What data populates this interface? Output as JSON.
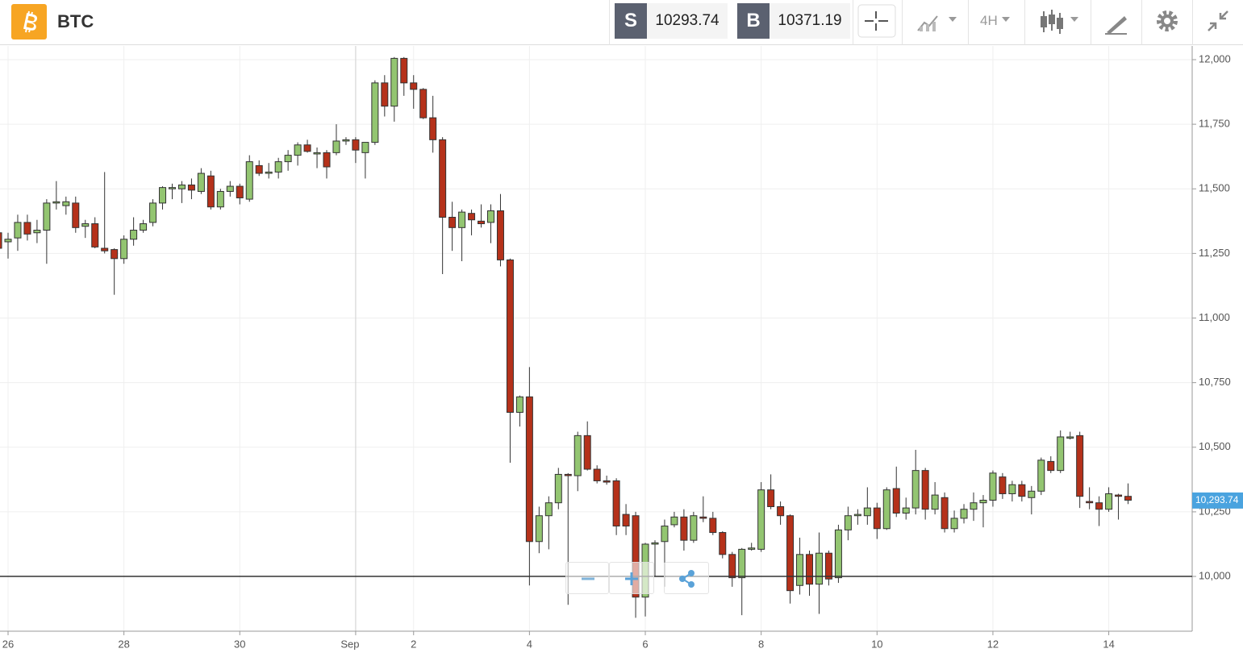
{
  "header": {
    "symbol": "BTC",
    "sell": {
      "label": "S",
      "price": "10293.74"
    },
    "buy": {
      "label": "B",
      "price": "10371.19"
    },
    "interval": "4H"
  },
  "chart_data": {
    "type": "candlestick",
    "up_color": "#93c571",
    "down_color": "#b5311a",
    "ylim": [
      9788,
      12053
    ],
    "yticks": [
      {
        "value": 10000,
        "label": "10,000"
      },
      {
        "value": 10250,
        "label": "10,250"
      },
      {
        "value": 10500,
        "label": "10,500"
      },
      {
        "value": 10750,
        "label": "10,750"
      },
      {
        "value": 11000,
        "label": "11,000"
      },
      {
        "value": 11250,
        "label": "11,250"
      },
      {
        "value": 11500,
        "label": "11,500"
      },
      {
        "value": 11750,
        "label": "11,750"
      },
      {
        "value": 12000,
        "label": "12,000"
      }
    ],
    "grid": true,
    "reference_line": 10000,
    "last_price": {
      "value": 10293.74,
      "label": "10,293.74"
    },
    "last_price_color": "#4aa3df",
    "categories": [
      null,
      "26",
      null,
      null,
      null,
      null,
      null,
      null,
      null,
      null,
      null,
      null,
      null,
      "28",
      null,
      null,
      null,
      null,
      null,
      null,
      null,
      null,
      null,
      null,
      null,
      "30",
      null,
      null,
      null,
      null,
      null,
      null,
      null,
      null,
      null,
      null,
      null,
      "Sep",
      null,
      null,
      null,
      null,
      null,
      "2",
      null,
      null,
      null,
      null,
      null,
      null,
      null,
      null,
      null,
      null,
      null,
      "4",
      null,
      null,
      null,
      null,
      null,
      null,
      null,
      null,
      null,
      null,
      null,
      "6",
      null,
      null,
      null,
      null,
      null,
      null,
      null,
      null,
      null,
      null,
      null,
      "8",
      null,
      null,
      null,
      null,
      null,
      null,
      null,
      null,
      null,
      null,
      null,
      "10",
      null,
      null,
      null,
      null,
      null,
      null,
      null,
      null,
      null,
      null,
      null,
      "12",
      null,
      null,
      null,
      null,
      null,
      null,
      null,
      null,
      null,
      null,
      null,
      "14",
      null,
      null
    ],
    "ohlc": [
      [
        11330,
        11340,
        11230,
        11270
      ],
      [
        11295,
        11330,
        11230,
        11305
      ],
      [
        11310,
        11400,
        11260,
        11370
      ],
      [
        11370,
        11400,
        11300,
        11325
      ],
      [
        11330,
        11380,
        11290,
        11340
      ],
      [
        11340,
        11460,
        11210,
        11445
      ],
      [
        11445,
        11530,
        11420,
        11450
      ],
      [
        11435,
        11470,
        11400,
        11450
      ],
      [
        11445,
        11470,
        11330,
        11350
      ],
      [
        11355,
        11380,
        11310,
        11365
      ],
      [
        11365,
        11390,
        11270,
        11275
      ],
      [
        11270,
        11565,
        11250,
        11260
      ],
      [
        11265,
        11270,
        11090,
        11230
      ],
      [
        11230,
        11320,
        11210,
        11305
      ],
      [
        11305,
        11390,
        11280,
        11340
      ],
      [
        11340,
        11380,
        11330,
        11365
      ],
      [
        11370,
        11460,
        11355,
        11445
      ],
      [
        11445,
        11510,
        11420,
        11505
      ],
      [
        11500,
        11520,
        11460,
        11505
      ],
      [
        11500,
        11530,
        11445,
        11515
      ],
      [
        11515,
        11540,
        11460,
        11495
      ],
      [
        11490,
        11580,
        11480,
        11560
      ],
      [
        11550,
        11570,
        11420,
        11430
      ],
      [
        11430,
        11500,
        11420,
        11490
      ],
      [
        11490,
        11530,
        11470,
        11510
      ],
      [
        11510,
        11520,
        11440,
        11465
      ],
      [
        11460,
        11630,
        11450,
        11605
      ],
      [
        11590,
        11610,
        11550,
        11560
      ],
      [
        11560,
        11600,
        11540,
        11565
      ],
      [
        11565,
        11620,
        11540,
        11605
      ],
      [
        11605,
        11650,
        11570,
        11630
      ],
      [
        11630,
        11680,
        11590,
        11670
      ],
      [
        11670,
        11690,
        11640,
        11645
      ],
      [
        11635,
        11660,
        11580,
        11640
      ],
      [
        11640,
        11650,
        11540,
        11585
      ],
      [
        11640,
        11750,
        11630,
        11685
      ],
      [
        11685,
        11700,
        11670,
        11690
      ],
      [
        11690,
        11700,
        11600,
        11650
      ],
      [
        11640,
        11680,
        11540,
        11680
      ],
      [
        11680,
        11920,
        11670,
        11910
      ],
      [
        11910,
        11940,
        11780,
        11820
      ],
      [
        11820,
        12010,
        11760,
        12005
      ],
      [
        12005,
        12010,
        11860,
        11910
      ],
      [
        11910,
        11940,
        11810,
        11885
      ],
      [
        11885,
        11890,
        11770,
        11775
      ],
      [
        11775,
        11860,
        11640,
        11690
      ],
      [
        11690,
        11700,
        11170,
        11390
      ],
      [
        11390,
        11450,
        11260,
        11350
      ],
      [
        11350,
        11420,
        11220,
        11410
      ],
      [
        11405,
        11420,
        11320,
        11380
      ],
      [
        11375,
        11440,
        11350,
        11365
      ],
      [
        11370,
        11440,
        11290,
        11415
      ],
      [
        11415,
        11480,
        11200,
        11225
      ],
      [
        11225,
        11230,
        10440,
        10635
      ],
      [
        10635,
        10700,
        10580,
        10695
      ],
      [
        10695,
        10810,
        9965,
        10135
      ],
      [
        10135,
        10270,
        10090,
        10235
      ],
      [
        10235,
        10310,
        10105,
        10285
      ],
      [
        10285,
        10420,
        10260,
        10395
      ],
      [
        10395,
        10400,
        9890,
        10390
      ],
      [
        10390,
        10560,
        10330,
        10545
      ],
      [
        10545,
        10600,
        10410,
        10415
      ],
      [
        10415,
        10430,
        10360,
        10370
      ],
      [
        10370,
        10390,
        10355,
        10365
      ],
      [
        10370,
        10380,
        10160,
        10195
      ],
      [
        10240,
        10280,
        10160,
        10195
      ],
      [
        10235,
        10250,
        9840,
        9920
      ],
      [
        9920,
        10130,
        9845,
        10125
      ],
      [
        10125,
        10140,
        10000,
        10130
      ],
      [
        10135,
        10220,
        9960,
        10195
      ],
      [
        10200,
        10250,
        10190,
        10230
      ],
      [
        10230,
        10260,
        10100,
        10140
      ],
      [
        10140,
        10250,
        10130,
        10235
      ],
      [
        10230,
        10310,
        10210,
        10225
      ],
      [
        10225,
        10250,
        10160,
        10170
      ],
      [
        10170,
        10175,
        10070,
        10085
      ],
      [
        10085,
        10095,
        9960,
        9995
      ],
      [
        9995,
        10110,
        9850,
        10105
      ],
      [
        10105,
        10130,
        10100,
        10110
      ],
      [
        10105,
        10365,
        10095,
        10335
      ],
      [
        10335,
        10395,
        10260,
        10270
      ],
      [
        10270,
        10290,
        10200,
        10235
      ],
      [
        10235,
        10240,
        9895,
        9945
      ],
      [
        9965,
        10150,
        9930,
        10085
      ],
      [
        10085,
        10100,
        9925,
        9970
      ],
      [
        9970,
        10170,
        9855,
        10090
      ],
      [
        10090,
        10100,
        9965,
        9990
      ],
      [
        9995,
        10200,
        9975,
        10180
      ],
      [
        10180,
        10270,
        10140,
        10235
      ],
      [
        10235,
        10260,
        10200,
        10240
      ],
      [
        10235,
        10345,
        10200,
        10265
      ],
      [
        10265,
        10285,
        10145,
        10185
      ],
      [
        10185,
        10345,
        10180,
        10335
      ],
      [
        10340,
        10425,
        10230,
        10245
      ],
      [
        10245,
        10305,
        10220,
        10265
      ],
      [
        10265,
        10490,
        10240,
        10410
      ],
      [
        10410,
        10420,
        10220,
        10260
      ],
      [
        10260,
        10365,
        10240,
        10315
      ],
      [
        10305,
        10325,
        10170,
        10185
      ],
      [
        10185,
        10255,
        10170,
        10225
      ],
      [
        10225,
        10280,
        10205,
        10260
      ],
      [
        10260,
        10325,
        10215,
        10285
      ],
      [
        10285,
        10315,
        10190,
        10295
      ],
      [
        10295,
        10410,
        10270,
        10400
      ],
      [
        10385,
        10400,
        10300,
        10320
      ],
      [
        10320,
        10370,
        10290,
        10355
      ],
      [
        10355,
        10370,
        10290,
        10310
      ],
      [
        10305,
        10350,
        10240,
        10330
      ],
      [
        10330,
        10460,
        10315,
        10450
      ],
      [
        10445,
        10465,
        10400,
        10410
      ],
      [
        10410,
        10565,
        10400,
        10540
      ],
      [
        10535,
        10560,
        10530,
        10540
      ],
      [
        10545,
        10560,
        10265,
        10310
      ],
      [
        10290,
        10345,
        10260,
        10285
      ],
      [
        10285,
        10310,
        10195,
        10260
      ],
      [
        10260,
        10345,
        10250,
        10320
      ],
      [
        10315,
        10320,
        10220,
        10310
      ],
      [
        10310,
        10360,
        10280,
        10295
      ]
    ]
  }
}
